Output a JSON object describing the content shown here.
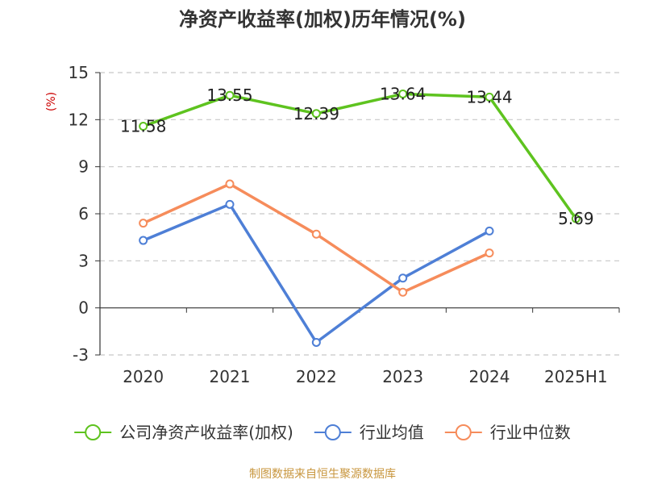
{
  "chart_data": {
    "type": "line",
    "title": "净资产收益率(加权)历年情况(%)",
    "ylabel": "(%)",
    "xlabel": "",
    "categories": [
      "2020",
      "2021",
      "2022",
      "2023",
      "2024",
      "2025H1"
    ],
    "ylim": [
      -3,
      15
    ],
    "yticks": [
      -3,
      0,
      3,
      6,
      9,
      12,
      15
    ],
    "ytick_labels": [
      "-3",
      "0",
      "3",
      "6",
      "9",
      "12",
      "15"
    ],
    "grid": true,
    "legend_position": "bottom",
    "series": [
      {
        "name": "公司净资产收益率(加权)",
        "color": "#5ec31f",
        "values": [
          11.58,
          13.55,
          12.39,
          13.64,
          13.44,
          5.69
        ],
        "labels": [
          "11.58",
          "13.55",
          "12.39",
          "13.64",
          "13.44",
          "5.69"
        ]
      },
      {
        "name": "行业均值",
        "color": "#4e7fd6",
        "values": [
          4.3,
          6.6,
          -2.2,
          1.9,
          4.9,
          null
        ]
      },
      {
        "name": "行业中位数",
        "color": "#f68c5b",
        "values": [
          5.4,
          7.9,
          4.7,
          1.0,
          3.5,
          null
        ]
      }
    ],
    "source": "制图数据来自恒生聚源数据库",
    "ylabel_color": "#cc0000",
    "source_color": "#c8963e"
  }
}
